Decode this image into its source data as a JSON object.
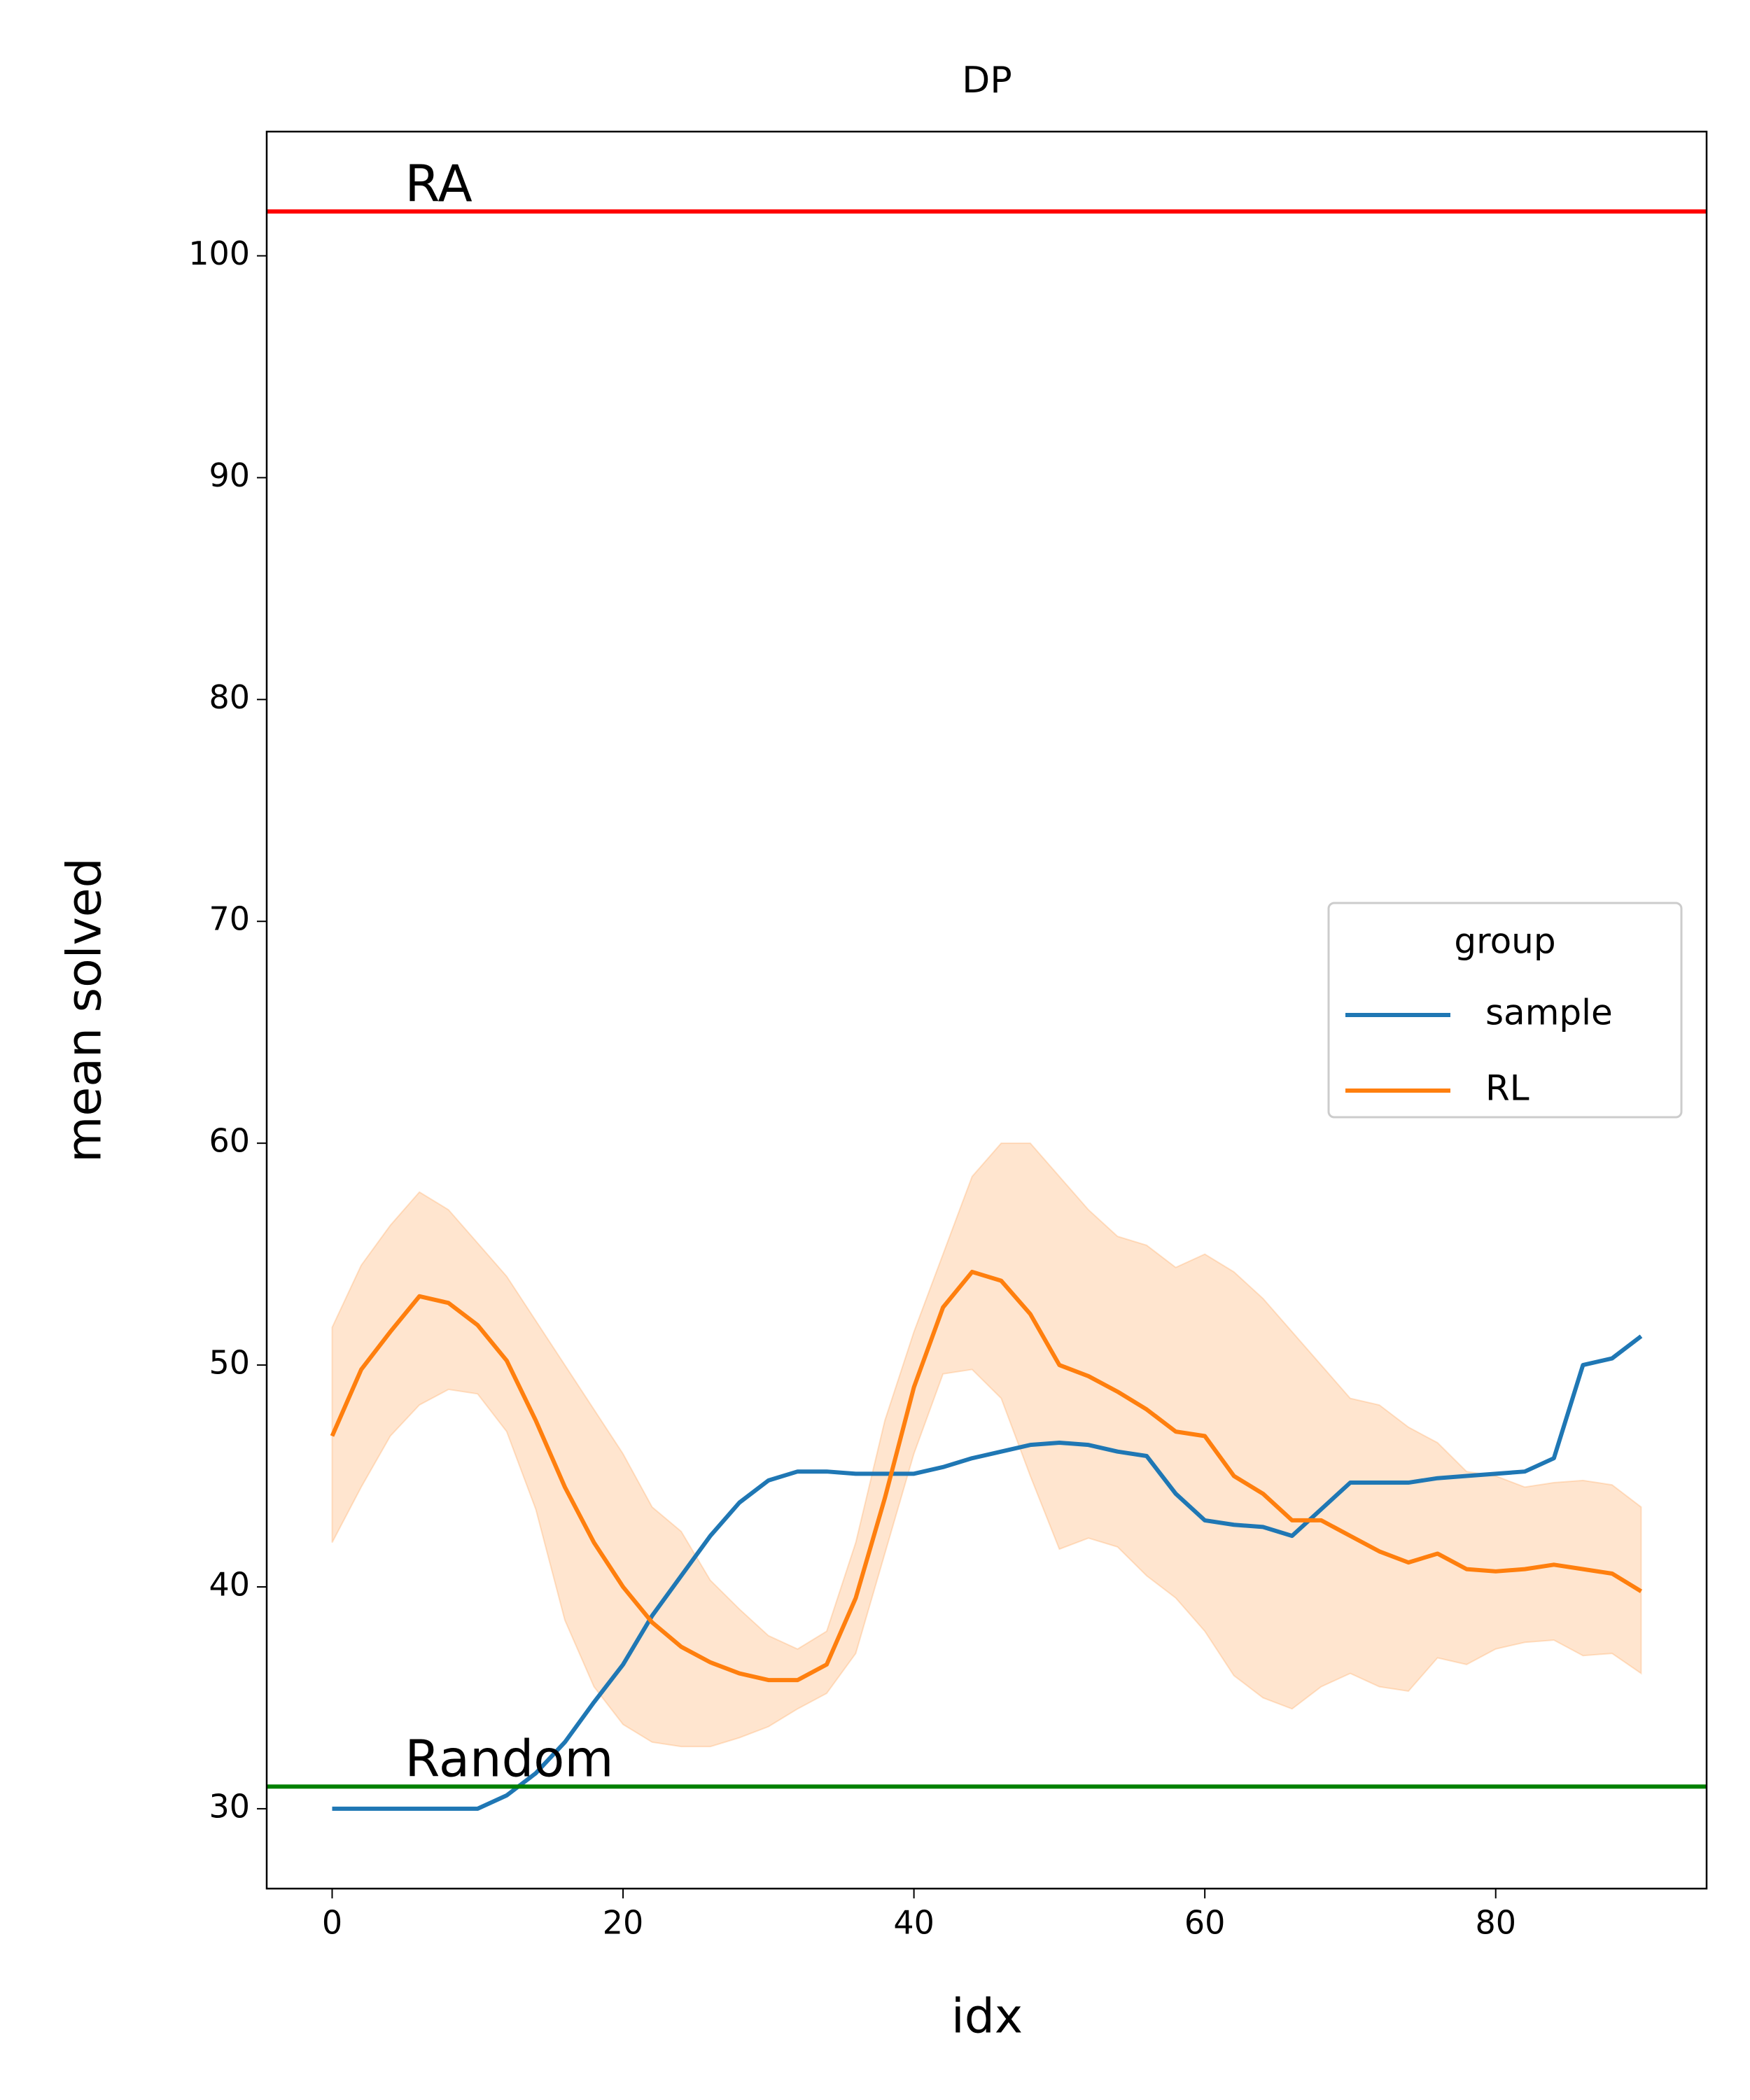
{
  "chart_data": {
    "type": "line",
    "title": "DP",
    "xlabel": "idx",
    "ylabel": "mean solved",
    "x": [
      0,
      2,
      4,
      6,
      8,
      10,
      12,
      14,
      16,
      18,
      20,
      22,
      24,
      26,
      28,
      30,
      32,
      34,
      36,
      38,
      40,
      42,
      44,
      46,
      48,
      50,
      52,
      54,
      56,
      58,
      60,
      62,
      64,
      66,
      68,
      70,
      72,
      74,
      76,
      78,
      80,
      82,
      84,
      86,
      88,
      90
    ],
    "series": [
      {
        "name": "sample",
        "color": "#1f77b4",
        "values": [
          30,
          30,
          30,
          30,
          30,
          30,
          30.6,
          31.6,
          33,
          34.8,
          36.5,
          38.7,
          40.5,
          42.3,
          43.8,
          44.8,
          45.2,
          45.2,
          45.1,
          45.1,
          45.1,
          45.4,
          45.8,
          46.1,
          46.4,
          46.5,
          46.4,
          46.1,
          45.9,
          44.2,
          43,
          42.8,
          42.7,
          42.3,
          43.5,
          44.7,
          44.7,
          44.7,
          44.9,
          45,
          45.1,
          45.2,
          45.8,
          50,
          50.3,
          51.3
        ]
      },
      {
        "name": "RL",
        "color": "#ff7f0e",
        "values": [
          46.8,
          49.8,
          51.5,
          53.1,
          52.8,
          51.8,
          50.2,
          47.5,
          44.5,
          42,
          40,
          38.4,
          37.3,
          36.6,
          36.1,
          35.8,
          35.8,
          36.5,
          39.5,
          44,
          49,
          52.6,
          54.2,
          53.8,
          52.3,
          50,
          49.5,
          48.8,
          48,
          47,
          46.8,
          45,
          44.2,
          43,
          43,
          42.3,
          41.6,
          41.1,
          41.5,
          40.8,
          40.7,
          40.8,
          41,
          40.8,
          40.6,
          39.8
        ],
        "upper": [
          51.7,
          54.5,
          56.3,
          57.8,
          57,
          55.5,
          54,
          52,
          50,
          48,
          46,
          43.6,
          42.5,
          40.3,
          39,
          37.8,
          37.2,
          38,
          42,
          47.5,
          51.5,
          55,
          58.5,
          60,
          60,
          58.5,
          57,
          55.8,
          55.4,
          54.4,
          55,
          54.2,
          53,
          51.5,
          50,
          48.5,
          48.2,
          47.2,
          46.5,
          45.2,
          45,
          44.5,
          44.7,
          44.8,
          44.6,
          43.6
        ],
        "lower": [
          42,
          44.5,
          46.8,
          48.2,
          48.9,
          48.7,
          47,
          43.5,
          38.5,
          35.5,
          33.8,
          33,
          32.8,
          32.8,
          33.2,
          33.7,
          34.5,
          35.2,
          37,
          41.5,
          46,
          49.6,
          49.8,
          48.5,
          45,
          41.7,
          42.2,
          41.8,
          40.5,
          39.5,
          38,
          36,
          35,
          34.5,
          35.5,
          36.1,
          35.5,
          35.3,
          36.8,
          36.5,
          37.2,
          37.5,
          37.6,
          36.9,
          37,
          36.1
        ]
      }
    ],
    "hlines": [
      {
        "y": 102,
        "color": "#ff0000",
        "label": "RA",
        "x": 5
      },
      {
        "y": 31,
        "color": "#008000",
        "label": "Random",
        "x": 5
      }
    ],
    "xlim": [
      -4.5,
      94.5
    ],
    "xticks": [
      0,
      20,
      40,
      60,
      80
    ],
    "ylim": [
      26.4,
      105.6
    ],
    "yticks": [
      30,
      40,
      50,
      60,
      70,
      80,
      90,
      100
    ],
    "legend": {
      "title": "group",
      "loc": "center right"
    }
  }
}
